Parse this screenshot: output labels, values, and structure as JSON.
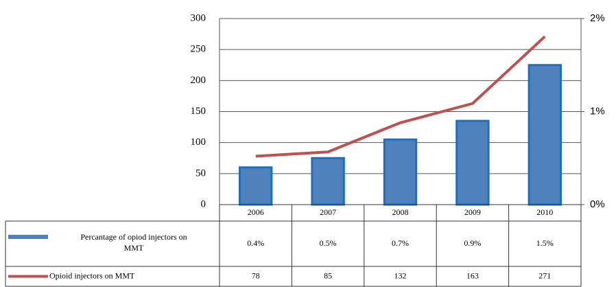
{
  "chart_data": {
    "type": "bar",
    "categories": [
      "2006",
      "2007",
      "2008",
      "2009",
      "2010"
    ],
    "series": [
      {
        "name": "Percantage of opiod injectors on MMT",
        "type": "bar",
        "axis": "y2",
        "color": "#4f81bd",
        "values": [
          0.4,
          0.5,
          0.7,
          0.9,
          1.5
        ],
        "value_labels": [
          "0.4%",
          "0.5%",
          "0.7%",
          "0.9%",
          "1.5%"
        ]
      },
      {
        "name": "Opioid injectors on MMT",
        "type": "line",
        "axis": "y",
        "color": "#c0504d",
        "values": [
          78,
          85,
          132,
          163,
          271
        ]
      }
    ],
    "ylim": [
      0,
      300
    ],
    "yticks": [
      0,
      50,
      100,
      150,
      200,
      250,
      300
    ],
    "y2lim": [
      0,
      2
    ],
    "y2ticks": [
      {
        "value": 0,
        "label": "0%"
      },
      {
        "value": 1,
        "label": "1%"
      },
      {
        "value": 2,
        "label": "2%"
      }
    ],
    "grid": true
  }
}
